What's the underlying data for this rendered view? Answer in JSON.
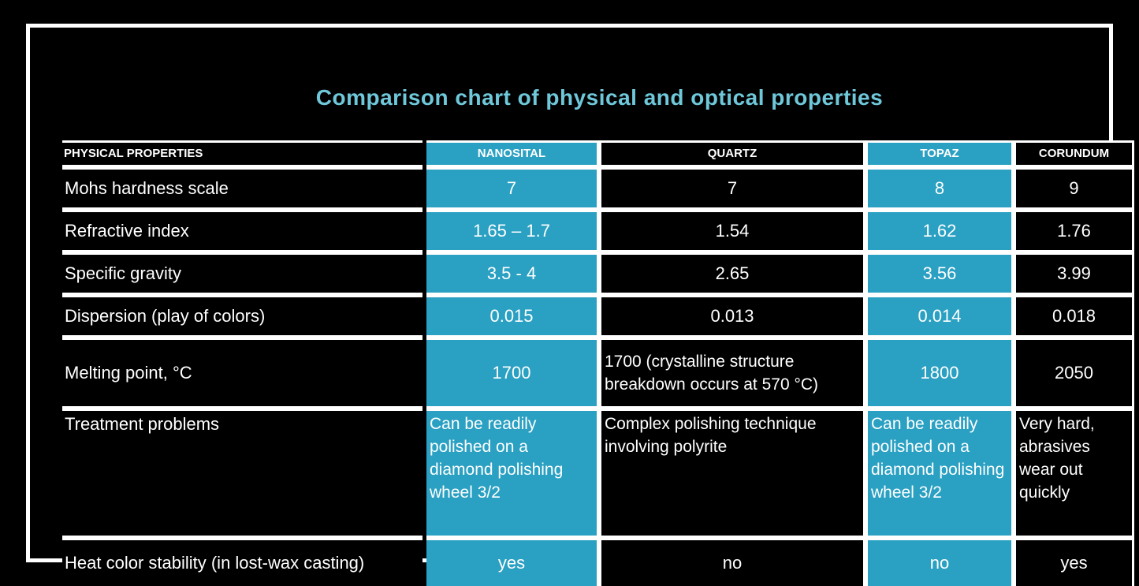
{
  "title": "Comparison chart of physical and optical properties",
  "colors": {
    "highlight_cell": "#2aa0c2",
    "title_text": "#6fc8da",
    "grid_lines": "#ffffff",
    "background": "#000000",
    "highlighted_columns": [
      "NANOSITAL",
      "TOPAZ"
    ]
  },
  "chart_data": {
    "type": "table",
    "title": "Comparison chart of physical and optical properties",
    "columns": [
      "PHYSICAL PROPERTIES",
      "NANOSITAL",
      "QUARTZ",
      "TOPAZ",
      "CORUNDUM"
    ],
    "rows": [
      {
        "label": "Mohs hardness scale",
        "values": [
          "7",
          "7",
          "8",
          "9"
        ]
      },
      {
        "label": "Refractive index",
        "values": [
          "1.65 – 1.7",
          "1.54",
          "1.62",
          "1.76"
        ]
      },
      {
        "label": "Specific gravity",
        "values": [
          "3.5 - 4",
          "2.65",
          "3.56",
          "3.99"
        ]
      },
      {
        "label": "Dispersion (play of colors)",
        "values": [
          "0.015",
          "0.013",
          "0.014",
          "0.018"
        ]
      },
      {
        "label": "Melting point, °C",
        "values": [
          "1700",
          "1700 (crystalline structure breakdown occurs at 570 °C)",
          "1800",
          "2050"
        ]
      },
      {
        "label": "Treatment problems",
        "values": [
          "Can be readily polished on a diamond polishing wheel 3/2",
          "Complex polishing technique involving polyrite",
          "Can be readily polished on a diamond polishing wheel 3/2",
          "Very hard, abrasives wear out quickly"
        ]
      },
      {
        "label": "Heat color stability (in lost-wax casting)",
        "values": [
          "yes",
          "no",
          "no",
          "yes"
        ]
      }
    ]
  }
}
